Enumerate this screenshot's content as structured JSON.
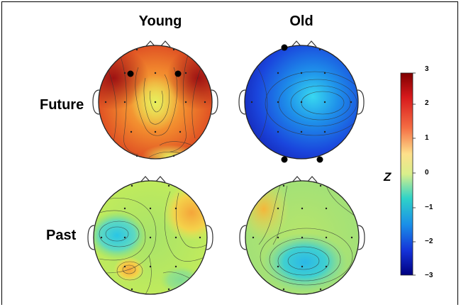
{
  "columns": [
    "Young",
    "Old"
  ],
  "rows": [
    "Future",
    "Past"
  ],
  "colorbar": {
    "label": "Z",
    "ticks": [
      "3",
      "2",
      "1",
      "0",
      "−1",
      "−2",
      "−3"
    ],
    "range": [
      -3,
      3
    ],
    "colors": [
      "#7f0000",
      "#d7191c",
      "#f46d43",
      "#fee08b",
      "#d9ef8b",
      "#2fd3c8",
      "#1a8fe8",
      "#1432d8",
      "#00007f"
    ]
  },
  "panels": [
    {
      "row": "Future",
      "column": "Young",
      "mean_z": 1.8,
      "marked_electrodes": 2
    },
    {
      "row": "Future",
      "column": "Old",
      "mean_z": -1.8,
      "marked_electrodes": 3
    },
    {
      "row": "Past",
      "column": "Young",
      "mean_z": 0.1,
      "marked_electrodes": 0
    },
    {
      "row": "Past",
      "column": "Old",
      "mean_z": -0.1,
      "marked_electrodes": 0
    }
  ]
}
